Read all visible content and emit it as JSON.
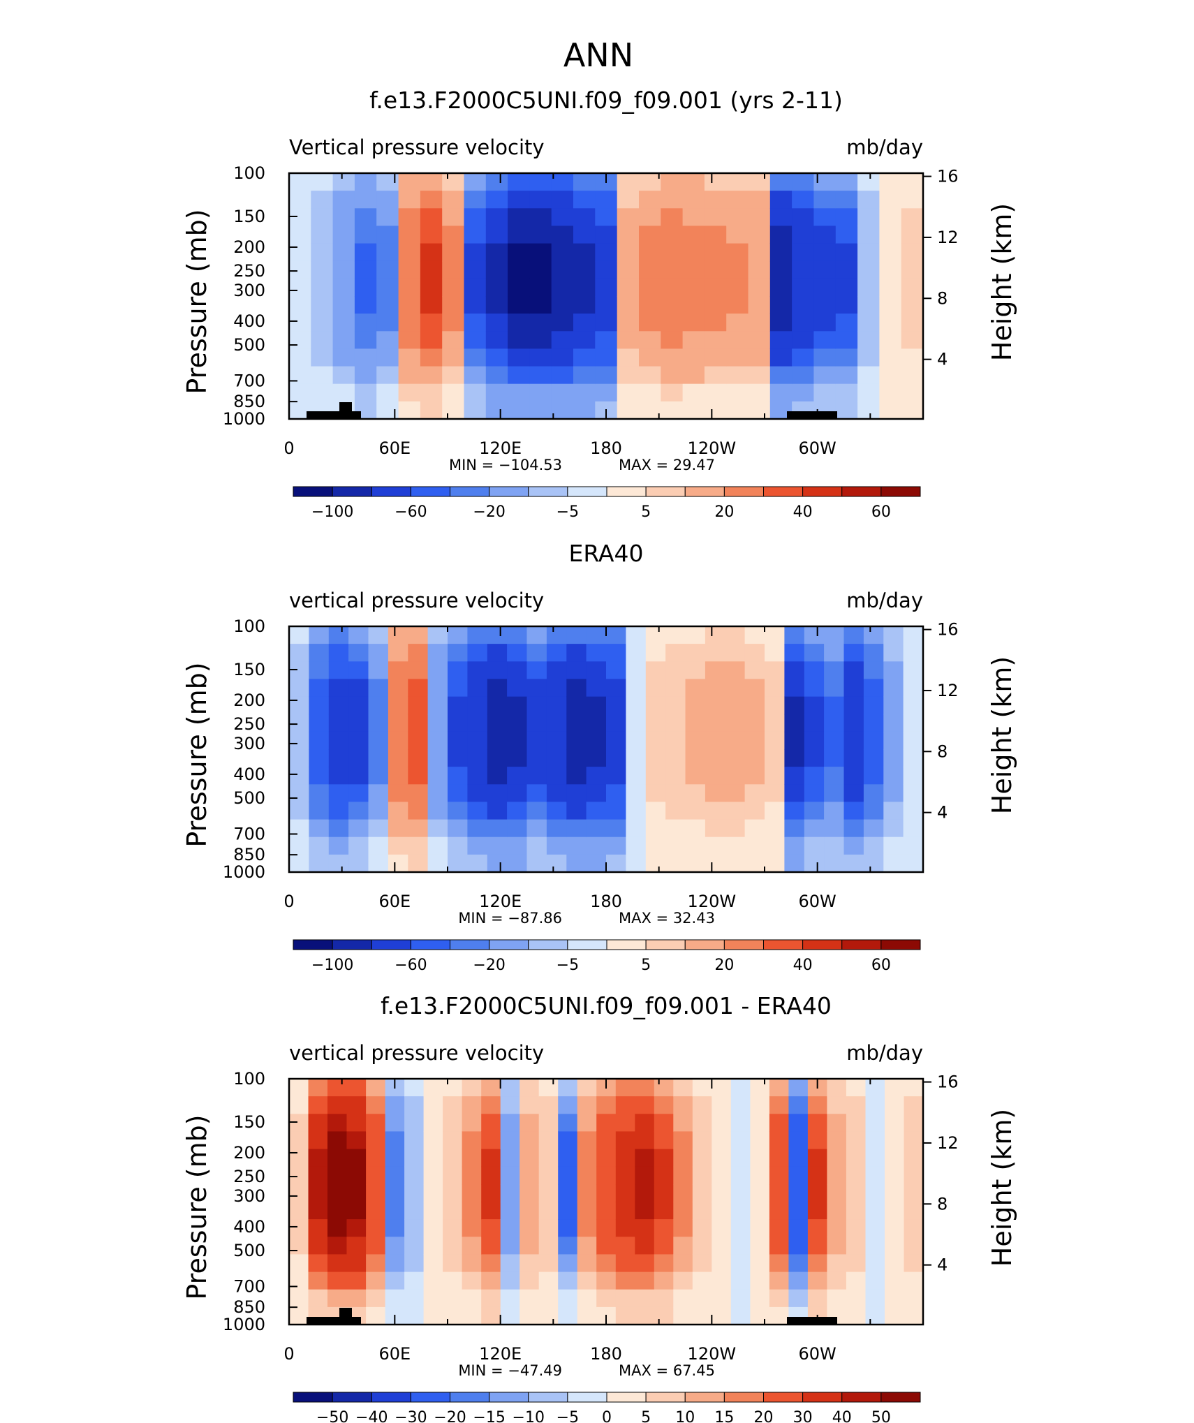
{
  "figure": {
    "title": "ANN"
  },
  "colors": {
    "negative": [
      "#08107a",
      "#1428a8",
      "#1f3fd6",
      "#2f5ff0",
      "#4f7fee",
      "#7fa3f3",
      "#a9c3f6",
      "#d5e6fb"
    ],
    "positive": [
      "#fde8d6",
      "#fbcdb3",
      "#f7ab88",
      "#f2835a",
      "#ec5530",
      "#d53216",
      "#b3190b",
      "#8c0a04"
    ]
  },
  "chart_data": [
    {
      "type": "heatmap",
      "title": "f.e13.F2000C5UNI.f09_f09.001 (yrs 2-11)",
      "variable_label": "Vertical pressure velocity",
      "units_label": "mb/day",
      "ylabel": "Pressure (mb)",
      "y2label": "Height (km)",
      "x_ticks": [
        "0",
        "60E",
        "120E",
        "180",
        "120W",
        "60W"
      ],
      "y_ticks": [
        "100",
        "150",
        "200",
        "250",
        "300",
        "400",
        "500",
        "700",
        "850",
        "1000"
      ],
      "y2_ticks": [
        "16",
        "12",
        "8",
        "4"
      ],
      "min_label": "MIN = −104.53",
      "max_label": "MAX = 29.47",
      "min": -104.53,
      "max": 29.47,
      "colorbar_ticks": [
        "−100",
        "−60",
        "−20",
        "−5",
        "5",
        "20",
        "40",
        "60"
      ],
      "profile_values": [
        -3,
        -10,
        -20,
        -35,
        -25,
        30,
        45,
        25,
        -45,
        -70,
        -85,
        -90,
        -80,
        -70,
        -55,
        15,
        25,
        28,
        27,
        25,
        22,
        20,
        -75,
        -60,
        -50,
        -45,
        -10,
        5,
        8
      ]
    },
    {
      "type": "heatmap",
      "title": "ERA40",
      "variable_label": "vertical pressure velocity",
      "units_label": "mb/day",
      "ylabel": "Pressure (mb)",
      "y2label": "Height (km)",
      "x_ticks": [
        "0",
        "60E",
        "120E",
        "180",
        "120W",
        "60W"
      ],
      "y_ticks": [
        "100",
        "150",
        "200",
        "250",
        "300",
        "400",
        "500",
        "700",
        "850",
        "1000"
      ],
      "y2_ticks": [
        "16",
        "12",
        "8",
        "4"
      ],
      "min_label": "MIN = −87.86",
      "max_label": "MAX = 32.43",
      "min": -87.86,
      "max": 32.43,
      "colorbar_ticks": [
        "−100",
        "−60",
        "−20",
        "−5",
        "5",
        "20",
        "40",
        "60"
      ],
      "profile_values": [
        -10,
        -40,
        -55,
        -50,
        -25,
        30,
        40,
        -20,
        -45,
        -60,
        -75,
        -70,
        -50,
        -60,
        -75,
        -70,
        -55,
        -5,
        8,
        10,
        12,
        15,
        14,
        12,
        8,
        -70,
        -45,
        -35,
        -60,
        -40,
        -15,
        -5
      ]
    },
    {
      "type": "heatmap",
      "title": "f.e13.F2000C5UNI.f09_f09.001 - ERA40",
      "variable_label": "vertical pressure velocity",
      "units_label": "mb/day",
      "ylabel": "Pressure (mb)",
      "y2label": "Height (km)",
      "x_ticks": [
        "0",
        "60E",
        "120E",
        "180",
        "120W",
        "60W"
      ],
      "y_ticks": [
        "100",
        "150",
        "200",
        "250",
        "300",
        "400",
        "500",
        "700",
        "850",
        "1000"
      ],
      "y2_ticks": [
        "16",
        "12",
        "8",
        "4"
      ],
      "min_label": "MIN = −47.49",
      "max_label": "MAX = 67.45",
      "min": -47.49,
      "max": 67.45,
      "colorbar_ticks": [
        "−50",
        "−40",
        "−30",
        "−20",
        "−15",
        "−10",
        "−5",
        "0",
        "5",
        "10",
        "15",
        "20",
        "30",
        "40",
        "50"
      ],
      "profile_values": [
        8,
        45,
        60,
        55,
        30,
        -20,
        -10,
        5,
        10,
        20,
        35,
        -15,
        15,
        10,
        -25,
        20,
        30,
        40,
        45,
        35,
        20,
        10,
        5,
        -5,
        5,
        30,
        -30,
        35,
        15,
        10,
        -5,
        5,
        10
      ]
    }
  ]
}
